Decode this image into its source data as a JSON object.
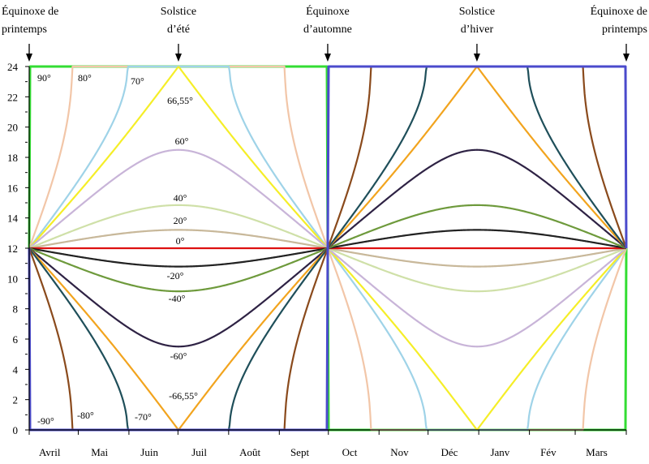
{
  "chart_data": {
    "type": "line",
    "xlabel": "",
    "ylabel": "",
    "ylim": [
      0,
      24
    ],
    "yticks": [
      "0",
      "2",
      "4",
      "6",
      "8",
      "10",
      "12",
      "14",
      "16",
      "18",
      "20",
      "22",
      "24"
    ],
    "months": [
      "Avril",
      "Mai",
      "Juin",
      "Juil",
      "Août",
      "Sept",
      "Oct",
      "Nov",
      "Déc",
      "Janv",
      "Fév",
      "Mars"
    ],
    "events": [
      {
        "lines": [
          "Équinoxe de",
          "printemps"
        ],
        "day": 0
      },
      {
        "lines": [
          "Solstice",
          "d’été"
        ],
        "day": 91.3
      },
      {
        "lines": [
          "Équinoxe",
          "d’automne"
        ],
        "day": 182.6
      },
      {
        "lines": [
          "Solstice",
          "d’hiver"
        ],
        "day": 273.9
      },
      {
        "lines": [
          "Équinoxe de",
          "printemps"
        ],
        "day": 365.25
      }
    ],
    "series": [
      {
        "name": "90°",
        "lat": 90,
        "color": "#33dd33"
      },
      {
        "name": "80°",
        "lat": 80,
        "color": "#f2c6a8"
      },
      {
        "name": "70°",
        "lat": 70,
        "color": "#9fd3e8"
      },
      {
        "name": "66,55°",
        "lat": 66.55,
        "color": "#f5ee28"
      },
      {
        "name": "60°",
        "lat": 60,
        "color": "#c8b4d8"
      },
      {
        "name": "40°",
        "lat": 40,
        "color": "#cfe0a8"
      },
      {
        "name": "20°",
        "lat": 20,
        "color": "#c8b89a"
      },
      {
        "name": "0°",
        "lat": 0,
        "color": "#dd1111"
      },
      {
        "name": "-20°",
        "lat": -20,
        "color": "#222222"
      },
      {
        "name": "-40°",
        "lat": -40,
        "color": "#6e9a3c"
      },
      {
        "name": "-60°",
        "lat": -60,
        "color": "#2e2244"
      },
      {
        "name": "-66,55°",
        "lat": -66.55,
        "color": "#f2a41e"
      },
      {
        "name": "-70°",
        "lat": -70,
        "color": "#1f4f5a"
      },
      {
        "name": "-80°",
        "lat": -80,
        "color": "#8a4a1c"
      },
      {
        "name": "-90°",
        "lat": -90,
        "color": "#4b4bcc"
      }
    ]
  }
}
